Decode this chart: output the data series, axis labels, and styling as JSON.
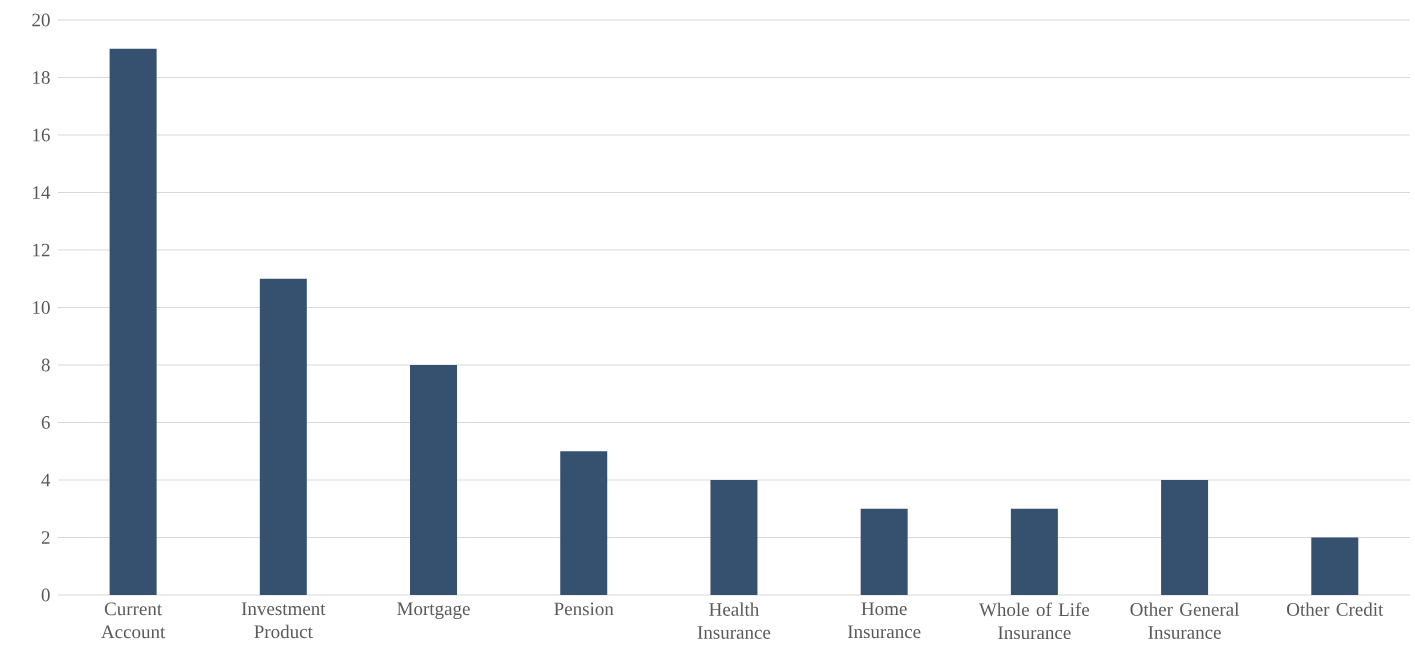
{
  "chart_data": {
    "type": "bar",
    "categories": [
      "Current Account",
      "Investment Product",
      "Mortgage",
      "Pension",
      "Health Insurance",
      "Home Insurance",
      "Whole of Life Insurance",
      "Other General Insurance",
      "Other Credit"
    ],
    "values": [
      19,
      11,
      8,
      5,
      4,
      3,
      3,
      4,
      2
    ],
    "color": "#365070",
    "ylim": [
      0,
      20
    ],
    "yticks": [
      0,
      2,
      4,
      6,
      8,
      10,
      12,
      14,
      16,
      18,
      20
    ],
    "grid": "y"
  }
}
